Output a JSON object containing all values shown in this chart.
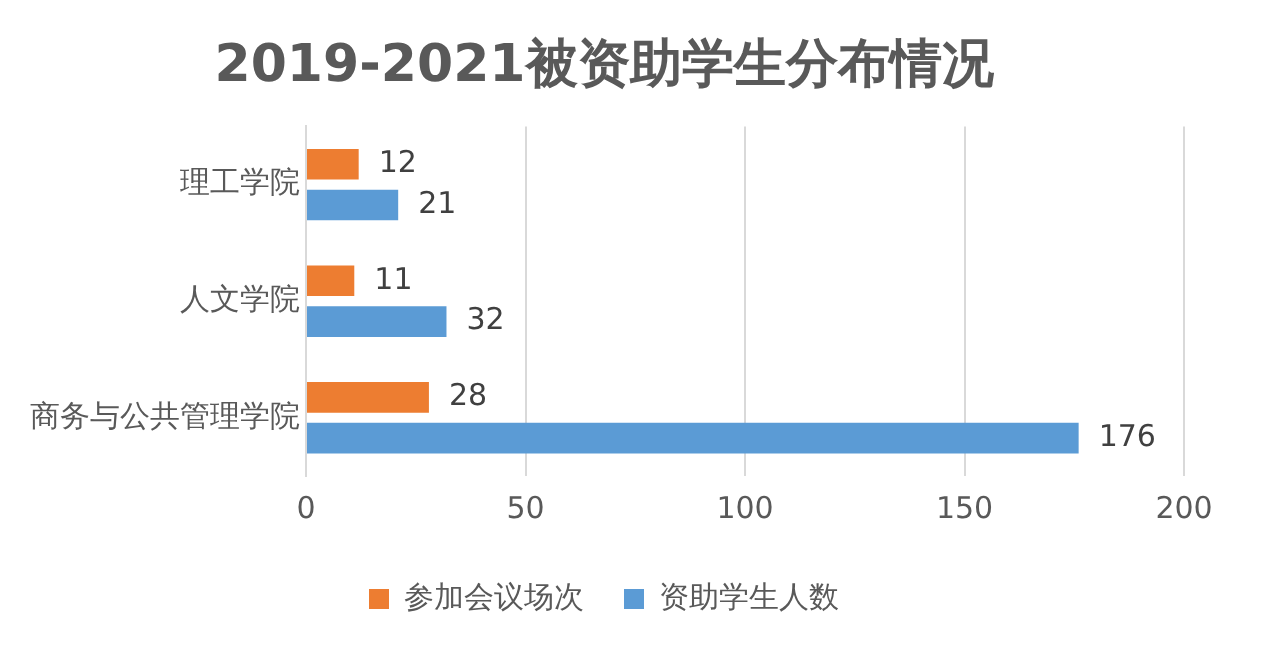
{
  "chart_data": {
    "type": "bar",
    "orientation": "horizontal",
    "title": "2019-2021被资助学生分布情况",
    "categories": [
      "理工学院",
      "人文学院",
      "商务与公共管理学院"
    ],
    "series": [
      {
        "name": "参加会议场次",
        "color": "#ed7d31",
        "values": [
          12,
          11,
          28
        ]
      },
      {
        "name": "资助学生人数",
        "color": "#5b9bd5",
        "values": [
          21,
          32,
          176
        ]
      }
    ],
    "xlim": [
      0,
      200
    ],
    "xticks": [
      0,
      50,
      100,
      150,
      200
    ],
    "grid": "x",
    "legend": "bottom",
    "data_labels": true
  }
}
